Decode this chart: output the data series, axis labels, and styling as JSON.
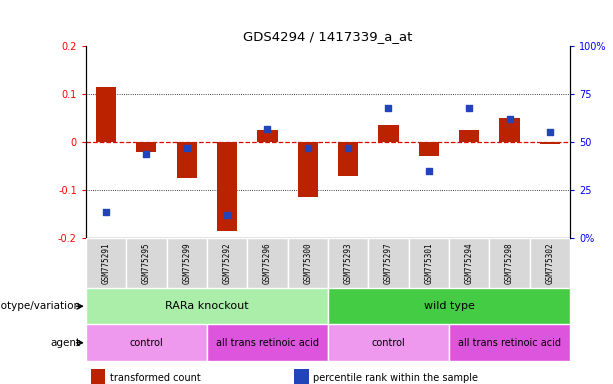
{
  "title": "GDS4294 / 1417339_a_at",
  "samples": [
    "GSM775291",
    "GSM775295",
    "GSM775299",
    "GSM775292",
    "GSM775296",
    "GSM775300",
    "GSM775293",
    "GSM775297",
    "GSM775301",
    "GSM775294",
    "GSM775298",
    "GSM775302"
  ],
  "transformed_count": [
    0.115,
    -0.02,
    -0.075,
    -0.185,
    0.025,
    -0.115,
    -0.07,
    0.035,
    -0.03,
    0.025,
    0.05,
    -0.005
  ],
  "percentile_rank": [
    13.5,
    44,
    47,
    12,
    57,
    47,
    47,
    68,
    35,
    68,
    62,
    55
  ],
  "ylim_left": [
    -0.2,
    0.2
  ],
  "ylim_right": [
    0,
    100
  ],
  "bar_color": "#bb2200",
  "dot_color": "#2244bb",
  "zero_line_color": "#dd0000",
  "dotted_line_color": "#000000",
  "genotype_groups": [
    {
      "label": "RARa knockout",
      "start": 0,
      "end": 6,
      "color": "#aaeea a"
    },
    {
      "label": "wild type",
      "start": 6,
      "end": 12,
      "color": "#44cc44"
    }
  ],
  "agent_groups": [
    {
      "label": "control",
      "start": 0,
      "end": 3,
      "color": "#ee99ee"
    },
    {
      "label": "all trans retinoic acid",
      "start": 3,
      "end": 6,
      "color": "#dd55dd"
    },
    {
      "label": "control",
      "start": 6,
      "end": 9,
      "color": "#ee99ee"
    },
    {
      "label": "all trans retinoic acid",
      "start": 9,
      "end": 12,
      "color": "#dd55dd"
    }
  ],
  "legend_items": [
    {
      "label": "transformed count",
      "color": "#bb2200"
    },
    {
      "label": "percentile rank within the sample",
      "color": "#2244bb"
    }
  ],
  "genotype_label": "genotype/variation",
  "agent_label": "agent",
  "yticks_left": [
    -0.2,
    -0.1,
    0.0,
    0.1,
    0.2
  ],
  "ytick_labels_left": [
    "-0.2",
    "-0.1",
    "0",
    "0.1",
    "0.2"
  ],
  "yticks_right": [
    0,
    25,
    50,
    75,
    100
  ],
  "ytick_labels_right": [
    "0%",
    "25",
    "50",
    "75",
    "100%"
  ],
  "bar_width": 0.5
}
